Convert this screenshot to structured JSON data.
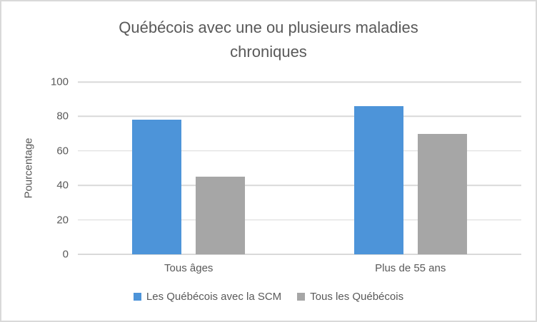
{
  "chart_data": {
    "type": "bar",
    "title": "Québécois avec une ou plusieurs maladies chroniques",
    "title_lines": [
      "Québécois avec une ou plusieurs maladies",
      "chroniques"
    ],
    "ylabel": "Pourcentage",
    "ylim": [
      0,
      100
    ],
    "y_ticks": [
      0,
      20,
      40,
      60,
      80,
      100
    ],
    "grid": true,
    "legend_position": "bottom",
    "categories": [
      "Tous âges",
      "Plus de 55 ans"
    ],
    "series": [
      {
        "name": "Les Québécois avec la SCM",
        "color": "#4D94D9",
        "values": [
          78,
          86
        ]
      },
      {
        "name": "Tous les Québécois",
        "color": "#A6A6A6",
        "values": [
          45,
          70
        ]
      }
    ],
    "colors": {
      "text": "#595959",
      "gridline": "#D9D9D9",
      "frame_border": "#D9D9D9",
      "background": "#FFFFFF"
    }
  }
}
